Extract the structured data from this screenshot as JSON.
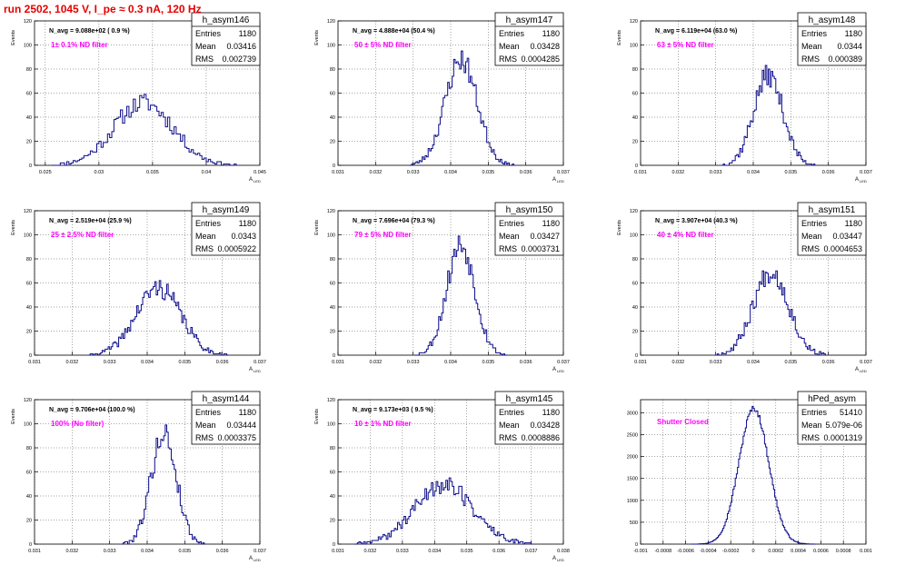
{
  "page": {
    "title": "run 2502,  1045 V, I_pe ≈ 0.3 nA, 120 Hz"
  },
  "colors": {
    "histogram": "#0b0b8a",
    "annotation": "#ff00ff",
    "title": "#e60000"
  },
  "chart_data": [
    {
      "type": "bar",
      "name": "h_asym146",
      "stats": {
        "entries_label": "Entries",
        "entries": "1180",
        "mean_label": "Mean",
        "mean": "0.03416",
        "rms_label": "RMS",
        "rms": "0.002739"
      },
      "navg": "N_avg = 9.088e+02 ( 0.9 %)",
      "note": "1± 0.1% ND filter",
      "ylabel": "Events",
      "xlabel": "A",
      "xlabel_sub": "LED",
      "xlim": [
        0.024,
        0.045
      ],
      "ylim": [
        0,
        120
      ],
      "xticks": [
        0.025,
        0.03,
        0.035,
        0.04,
        0.045
      ],
      "xtick_labels": [
        "0.025",
        "0.03",
        "0.035",
        "0.04",
        "0.045"
      ],
      "yticks": [
        0,
        20,
        40,
        60,
        80,
        100,
        120
      ],
      "ytick_labels": [
        "0",
        "20",
        "40",
        "60",
        "80",
        "100",
        "120"
      ],
      "mean_value": 0.03416,
      "sigma_value": 0.002739,
      "entries_value": 1180,
      "bin_width": 0.0002,
      "peak": 52,
      "seed": 11
    },
    {
      "type": "bar",
      "name": "h_asym147",
      "stats": {
        "entries_label": "Entries",
        "entries": "1180",
        "mean_label": "Mean",
        "mean": "0.03428",
        "rms_label": "RMS",
        "rms": "0.0004285"
      },
      "navg": "N_avg = 4.888e+04 (50.4 %)",
      "note": "50 ± 5% ND filter",
      "ylabel": "Events",
      "xlabel": "A",
      "xlabel_sub": "LED",
      "xlim": [
        0.031,
        0.037
      ],
      "ylim": [
        0,
        120
      ],
      "xticks": [
        0.031,
        0.032,
        0.033,
        0.034,
        0.035,
        0.036,
        0.037
      ],
      "xtick_labels": [
        "0.031",
        "0.032",
        "0.033",
        "0.034",
        "0.035",
        "0.036",
        "0.037"
      ],
      "yticks": [
        0,
        20,
        40,
        60,
        80,
        100,
        120
      ],
      "ytick_labels": [
        "0",
        "20",
        "40",
        "60",
        "80",
        "100",
        "120"
      ],
      "mean_value": 0.03428,
      "sigma_value": 0.0004285,
      "entries_value": 1180,
      "bin_width": 4e-05,
      "peak": 88,
      "seed": 23
    },
    {
      "type": "bar",
      "name": "h_asym148",
      "stats": {
        "entries_label": "Entries",
        "entries": "1180",
        "mean_label": "Mean",
        "mean": "0.0344",
        "rms_label": "RMS",
        "rms": "0.000389"
      },
      "navg": "N_avg = 6.119e+04 (63.0 %)",
      "note": "63 ± 5% ND filter",
      "ylabel": "Events",
      "xlabel": "A",
      "xlabel_sub": "LED",
      "xlim": [
        0.031,
        0.037
      ],
      "ylim": [
        0,
        120
      ],
      "xticks": [
        0.031,
        0.032,
        0.033,
        0.034,
        0.035,
        0.036,
        0.037
      ],
      "xtick_labels": [
        "0.031",
        "0.032",
        "0.033",
        "0.034",
        "0.035",
        "0.036",
        "0.037"
      ],
      "yticks": [
        0,
        20,
        40,
        60,
        80,
        100,
        120
      ],
      "ytick_labels": [
        "0",
        "20",
        "40",
        "60",
        "80",
        "100",
        "120"
      ],
      "mean_value": 0.0344,
      "sigma_value": 0.000389,
      "entries_value": 1180,
      "bin_width": 4e-05,
      "peak": 75,
      "seed": 37
    },
    {
      "type": "bar",
      "name": "h_asym149",
      "stats": {
        "entries_label": "Entries",
        "entries": "1180",
        "mean_label": "Mean",
        "mean": "0.0343",
        "rms_label": "RMS",
        "rms": "0.0005922"
      },
      "navg": "N_avg = 2.519e+04 (25.9 %)",
      "note": "25 ± 2.5% ND filter",
      "ylabel": "Events",
      "xlabel": "A",
      "xlabel_sub": "LED",
      "xlim": [
        0.031,
        0.037
      ],
      "ylim": [
        0,
        120
      ],
      "xticks": [
        0.031,
        0.032,
        0.033,
        0.034,
        0.035,
        0.036,
        0.037
      ],
      "xtick_labels": [
        "0.031",
        "0.032",
        "0.033",
        "0.034",
        "0.035",
        "0.036",
        "0.037"
      ],
      "yticks": [
        0,
        20,
        40,
        60,
        80,
        100,
        120
      ],
      "ytick_labels": [
        "0",
        "20",
        "40",
        "60",
        "80",
        "100",
        "120"
      ],
      "mean_value": 0.0343,
      "sigma_value": 0.0005922,
      "entries_value": 1180,
      "bin_width": 4e-05,
      "peak": 56,
      "seed": 41
    },
    {
      "type": "bar",
      "name": "h_asym150",
      "stats": {
        "entries_label": "Entries",
        "entries": "1180",
        "mean_label": "Mean",
        "mean": "0.03427",
        "rms_label": "RMS",
        "rms": "0.0003731"
      },
      "navg": "N_avg = 7.696e+04 (79.3 %)",
      "note": "79 ± 5% ND filter",
      "ylabel": "Events",
      "xlabel": "A",
      "xlabel_sub": "LED",
      "xlim": [
        0.031,
        0.037
      ],
      "ylim": [
        0,
        120
      ],
      "xticks": [
        0.031,
        0.032,
        0.033,
        0.034,
        0.035,
        0.036,
        0.037
      ],
      "xtick_labels": [
        "0.031",
        "0.032",
        "0.033",
        "0.034",
        "0.035",
        "0.036",
        "0.037"
      ],
      "yticks": [
        0,
        20,
        40,
        60,
        80,
        100,
        120
      ],
      "ytick_labels": [
        "0",
        "20",
        "40",
        "60",
        "80",
        "100",
        "120"
      ],
      "mean_value": 0.03427,
      "sigma_value": 0.0003731,
      "entries_value": 1180,
      "bin_width": 4e-05,
      "peak": 92,
      "seed": 53
    },
    {
      "type": "bar",
      "name": "h_asym151",
      "stats": {
        "entries_label": "Entries",
        "entries": "1180",
        "mean_label": "Mean",
        "mean": "0.03447",
        "rms_label": "RMS",
        "rms": "0.0004653"
      },
      "navg": "N_avg = 3.907e+04 (40.3 %)",
      "note": "40 ± 4% ND filter",
      "ylabel": "Events",
      "xlabel": "A",
      "xlabel_sub": "LED",
      "xlim": [
        0.031,
        0.037
      ],
      "ylim": [
        0,
        120
      ],
      "xticks": [
        0.031,
        0.032,
        0.033,
        0.034,
        0.035,
        0.036,
        0.037
      ],
      "xtick_labels": [
        "0.031",
        "0.032",
        "0.033",
        "0.034",
        "0.035",
        "0.036",
        "0.037"
      ],
      "yticks": [
        0,
        20,
        40,
        60,
        80,
        100,
        120
      ],
      "ytick_labels": [
        "0",
        "20",
        "40",
        "60",
        "80",
        "100",
        "120"
      ],
      "mean_value": 0.03447,
      "sigma_value": 0.0004653,
      "entries_value": 1180,
      "bin_width": 4e-05,
      "peak": 70,
      "seed": 67
    },
    {
      "type": "bar",
      "name": "h_asym144",
      "stats": {
        "entries_label": "Entries",
        "entries": "1180",
        "mean_label": "Mean",
        "mean": "0.03444",
        "rms_label": "RMS",
        "rms": "0.0003375"
      },
      "navg": "N_avg = 9.706e+04 (100.0 %)",
      "note": "100% (No filter)",
      "ylabel": "Events",
      "xlabel": "A",
      "xlabel_sub": "LED",
      "xlim": [
        0.031,
        0.037
      ],
      "ylim": [
        0,
        120
      ],
      "xticks": [
        0.031,
        0.032,
        0.033,
        0.034,
        0.035,
        0.036,
        0.037
      ],
      "xtick_labels": [
        "0.031",
        "0.032",
        "0.033",
        "0.034",
        "0.035",
        "0.036",
        "0.037"
      ],
      "yticks": [
        0,
        20,
        40,
        60,
        80,
        100,
        120
      ],
      "ytick_labels": [
        "0",
        "20",
        "40",
        "60",
        "80",
        "100",
        "120"
      ],
      "mean_value": 0.03444,
      "sigma_value": 0.0003375,
      "entries_value": 1180,
      "bin_width": 4e-05,
      "peak": 92,
      "seed": 79
    },
    {
      "type": "bar",
      "name": "h_asym145",
      "stats": {
        "entries_label": "Entries",
        "entries": "1180",
        "mean_label": "Mean",
        "mean": "0.03428",
        "rms_label": "RMS",
        "rms": "0.0008886"
      },
      "navg": "N_avg = 9.173e+03 ( 9.5 %)",
      "note": "10 ± 1% ND filter",
      "ylabel": "Events",
      "xlabel": "A",
      "xlabel_sub": "LED",
      "xlim": [
        0.031,
        0.038
      ],
      "ylim": [
        0,
        120
      ],
      "xticks": [
        0.031,
        0.032,
        0.033,
        0.034,
        0.035,
        0.036,
        0.037,
        0.038
      ],
      "xtick_labels": [
        "0.031",
        "0.032",
        "0.033",
        "0.034",
        "0.035",
        "0.036",
        "0.037",
        "0.038"
      ],
      "yticks": [
        0,
        20,
        40,
        60,
        80,
        100,
        120
      ],
      "ytick_labels": [
        "0",
        "20",
        "40",
        "60",
        "80",
        "100",
        "120"
      ],
      "mean_value": 0.03428,
      "sigma_value": 0.0008886,
      "entries_value": 1180,
      "bin_width": 5e-05,
      "peak": 50,
      "seed": 89
    },
    {
      "type": "bar",
      "name": "hPed_asym",
      "stats": {
        "entries_label": "Entries",
        "entries": "51410",
        "mean_label": "Mean",
        "mean": "5.079e-06",
        "rms_label": "RMS",
        "rms": "0.0001319"
      },
      "navg": "",
      "note": "Shutter Closed",
      "ylabel": "",
      "xlabel": "",
      "xlabel_sub": "",
      "xlim": [
        -0.001,
        0.001
      ],
      "ylim": [
        0,
        3300
      ],
      "xticks": [
        -0.001,
        -0.0008,
        -0.0006,
        -0.0004,
        -0.0002,
        0,
        0.0002,
        0.0004,
        0.0006,
        0.0008,
        0.001
      ],
      "xtick_labels": [
        "-0.001",
        "-0.0008",
        "-0.0006",
        "-0.0004",
        "-0.0002",
        "0",
        "0.0002",
        "0.0004",
        "0.0006",
        "0.0008",
        "0.001"
      ],
      "yticks": [
        0,
        500,
        1000,
        1500,
        2000,
        2500,
        3000
      ],
      "ytick_labels": [
        "0",
        "500",
        "1000",
        "1500",
        "2000",
        "2500",
        "3000"
      ],
      "mean_value": 5.079e-06,
      "sigma_value": 0.0001319,
      "entries_value": 51410,
      "bin_width": 1e-05,
      "peak": 3100,
      "seed": 97
    }
  ]
}
